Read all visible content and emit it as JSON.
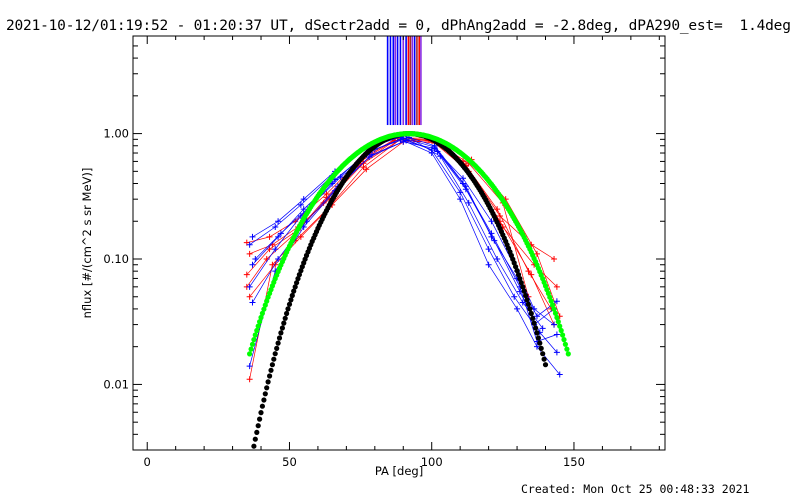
{
  "header": {
    "title": "2021-10-12/01:19:52 - 01:20:37 UT, dSectr2add = 0, dPhAng2add = -2.8deg, dPA290_est=  1.4deg",
    "created": "Created: Mon Oct 25 00:48:33 2021"
  },
  "colors": {
    "blue_series": "#0000ff",
    "red_series": "#ff0000",
    "black_fit": "#000000",
    "green_fit": "#00ff00",
    "purple_lines": "#8a2be2",
    "brown_lines": "#a52a2a"
  },
  "chart_data": {
    "type": "scatter",
    "xlabel": "PA [deg]",
    "ylabel": "nflux [#/(cm^2 s sr MeV)]",
    "xlim": [
      -5,
      182
    ],
    "ylim": [
      0.003,
      6
    ],
    "yscale": "log",
    "grid": false,
    "x_ticks": [
      {
        "value": 0,
        "label": "0"
      },
      {
        "value": 50,
        "label": "50"
      },
      {
        "value": 100,
        "label": "100"
      },
      {
        "value": 150,
        "label": "150"
      }
    ],
    "y_ticks": [
      {
        "value": 0.01,
        "label": "0.01"
      },
      {
        "value": 0.1,
        "label": "0.10"
      },
      {
        "value": 1,
        "label": "1.00"
      }
    ],
    "vertical_markers": [
      {
        "x": 84.5,
        "color": "#0000ff"
      },
      {
        "x": 85.5,
        "color": "#0000ff"
      },
      {
        "x": 86.5,
        "color": "#0000ff"
      },
      {
        "x": 87.2,
        "color": "#8a2be2"
      },
      {
        "x": 88.0,
        "color": "#0000ff"
      },
      {
        "x": 89.0,
        "color": "#0000ff"
      },
      {
        "x": 90.0,
        "color": "#8a2be2"
      },
      {
        "x": 91.0,
        "color": "#0000ff"
      },
      {
        "x": 91.8,
        "color": "#ff0000"
      },
      {
        "x": 92.5,
        "color": "#a52a2a"
      },
      {
        "x": 93.2,
        "color": "#8a2be2"
      },
      {
        "x": 94.0,
        "color": "#0000ff"
      },
      {
        "x": 94.8,
        "color": "#a52a2a"
      },
      {
        "x": 95.6,
        "color": "#ff0000"
      },
      {
        "x": 96.2,
        "color": "#8a2be2"
      }
    ],
    "marker_range": [
      1.17,
      6
    ],
    "series": [
      {
        "color": "#ff0000",
        "x": [
          35,
          43,
          52,
          63,
          75,
          88,
          100,
          112,
          124,
          135,
          143
        ],
        "y": [
          0.135,
          0.15,
          0.2,
          0.33,
          0.62,
          0.93,
          0.88,
          0.56,
          0.22,
          0.13,
          0.1
        ]
      },
      {
        "color": "#ff0000",
        "x": [
          36,
          44,
          53,
          64,
          76,
          89,
          101,
          113,
          125,
          136,
          144
        ],
        "y": [
          0.11,
          0.13,
          0.18,
          0.3,
          0.58,
          0.9,
          0.84,
          0.5,
          0.18,
          0.09,
          0.06
        ]
      },
      {
        "color": "#ff0000",
        "x": [
          35,
          42,
          52,
          62,
          74,
          87,
          99,
          111,
          123,
          134,
          142
        ],
        "y": [
          0.06,
          0.1,
          0.16,
          0.28,
          0.55,
          0.88,
          0.9,
          0.6,
          0.25,
          0.08,
          0.04
        ]
      },
      {
        "color": "#ff0000",
        "x": [
          36,
          45,
          54,
          65,
          77,
          90,
          102,
          114,
          126,
          137,
          145
        ],
        "y": [
          0.05,
          0.09,
          0.15,
          0.27,
          0.52,
          0.86,
          0.86,
          0.62,
          0.3,
          0.11,
          0.035
        ]
      },
      {
        "color": "#ff0000",
        "x": [
          35,
          43,
          53,
          63,
          75,
          88,
          100,
          112,
          124,
          135,
          143
        ],
        "y": [
          0.075,
          0.12,
          0.17,
          0.31,
          0.6,
          0.92,
          0.92,
          0.55,
          0.2,
          0.075,
          0.03
        ]
      },
      {
        "color": "#ff0000",
        "x": [
          36,
          44,
          52,
          64,
          76,
          89,
          101,
          113,
          125,
          134
        ],
        "y": [
          0.011,
          0.09,
          0.14,
          0.26,
          0.54,
          0.9,
          0.87,
          0.58,
          0.28,
          0.05
        ]
      },
      {
        "color": "#0000ff",
        "x": [
          37,
          46,
          55,
          66,
          78,
          90,
          101,
          112,
          121,
          130,
          137,
          144
        ],
        "y": [
          0.15,
          0.2,
          0.3,
          0.5,
          0.8,
          0.96,
          0.8,
          0.38,
          0.15,
          0.07,
          0.035,
          0.046
        ]
      },
      {
        "color": "#0000ff",
        "x": [
          36,
          45,
          54,
          65,
          77,
          89,
          100,
          110,
          120,
          129,
          136,
          143
        ],
        "y": [
          0.13,
          0.18,
          0.27,
          0.46,
          0.76,
          0.94,
          0.74,
          0.34,
          0.12,
          0.05,
          0.03,
          0.04
        ]
      },
      {
        "color": "#0000ff",
        "x": [
          37,
          46,
          55,
          66,
          78,
          90,
          101,
          111,
          121,
          131,
          137,
          144
        ],
        "y": [
          0.09,
          0.15,
          0.25,
          0.43,
          0.72,
          0.92,
          0.78,
          0.4,
          0.16,
          0.06,
          0.022,
          0.025
        ]
      },
      {
        "color": "#0000ff",
        "x": [
          36,
          45,
          54,
          65,
          77,
          89,
          100,
          110,
          120,
          130,
          137,
          145
        ],
        "y": [
          0.06,
          0.12,
          0.22,
          0.4,
          0.7,
          0.9,
          0.7,
          0.3,
          0.09,
          0.04,
          0.02,
          0.012
        ]
      },
      {
        "color": "#0000ff",
        "x": [
          37,
          46,
          56,
          67,
          79,
          91,
          102,
          112,
          122,
          131,
          138,
          144
        ],
        "y": [
          0.045,
          0.1,
          0.2,
          0.38,
          0.68,
          0.88,
          0.72,
          0.36,
          0.14,
          0.055,
          0.026,
          0.018
        ]
      },
      {
        "color": "#0000ff",
        "x": [
          36,
          45,
          55,
          66,
          78,
          90,
          101,
          111,
          121,
          130,
          136,
          143
        ],
        "y": [
          0.014,
          0.08,
          0.18,
          0.35,
          0.65,
          0.86,
          0.76,
          0.44,
          0.2,
          0.08,
          0.04,
          0.03
        ]
      },
      {
        "color": "#0000ff",
        "x": [
          38,
          47,
          57,
          68,
          80,
          92,
          103,
          113,
          123,
          132,
          139
        ],
        "y": [
          0.1,
          0.16,
          0.26,
          0.45,
          0.75,
          0.93,
          0.66,
          0.28,
          0.1,
          0.045,
          0.028
        ]
      }
    ],
    "fit_curves": [
      {
        "color": "#000000",
        "pa_min": 30,
        "pa_max": 140,
        "peak": 1.0,
        "center": 92,
        "power": 0.88
      },
      {
        "color": "#00ff00",
        "pa_min": 36,
        "pa_max": 148,
        "peak": 1.0,
        "center": 92,
        "power": 0.58
      }
    ]
  }
}
